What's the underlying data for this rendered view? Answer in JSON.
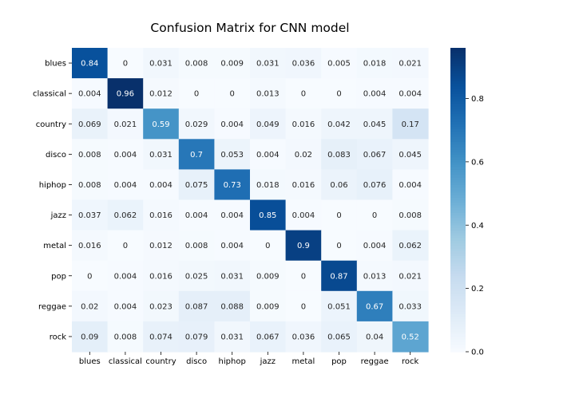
{
  "chart_data": {
    "type": "heatmap",
    "title": "Confusion Matrix for CNN model",
    "xlabel": "",
    "ylabel": "",
    "row_labels": [
      "blues",
      "classical",
      "country",
      "disco",
      "hiphop",
      "jazz",
      "metal",
      "pop",
      "reggae",
      "rock"
    ],
    "col_labels": [
      "blues",
      "classical",
      "country",
      "disco",
      "hiphop",
      "jazz",
      "metal",
      "pop",
      "reggae",
      "rock"
    ],
    "values": [
      [
        0.84,
        0,
        0.031,
        0.008,
        0.009,
        0.031,
        0.036,
        0.005,
        0.018,
        0.021
      ],
      [
        0.004,
        0.96,
        0.012,
        0,
        0,
        0.013,
        0,
        0,
        0.004,
        0.004
      ],
      [
        0.069,
        0.021,
        0.59,
        0.029,
        0.004,
        0.049,
        0.016,
        0.042,
        0.045,
        0.17
      ],
      [
        0.008,
        0.004,
        0.031,
        0.7,
        0.053,
        0.004,
        0.02,
        0.083,
        0.067,
        0.045
      ],
      [
        0.008,
        0.004,
        0.004,
        0.075,
        0.73,
        0.018,
        0.016,
        0.06,
        0.076,
        0.004
      ],
      [
        0.037,
        0.062,
        0.016,
        0.004,
        0.004,
        0.85,
        0.004,
        0,
        0,
        0.008
      ],
      [
        0.016,
        0,
        0.012,
        0.008,
        0.004,
        0,
        0.9,
        0,
        0.004,
        0.062
      ],
      [
        0,
        0.004,
        0.016,
        0.025,
        0.031,
        0.009,
        0,
        0.87,
        0.013,
        0.021
      ],
      [
        0.02,
        0.004,
        0.023,
        0.087,
        0.088,
        0.009,
        0,
        0.051,
        0.67,
        0.033
      ],
      [
        0.09,
        0.008,
        0.074,
        0.079,
        0.031,
        0.067,
        0.036,
        0.065,
        0.04,
        0.52
      ]
    ],
    "colorbar": {
      "min": 0,
      "max": 0.96,
      "ticks": [
        0.0,
        0.2,
        0.4,
        0.6,
        0.8
      ],
      "tick_labels": [
        "0.0",
        "0.2",
        "0.4",
        "0.6",
        "0.8"
      ],
      "colormap": "Blues"
    },
    "grid": false,
    "legend": "colorbar-right"
  }
}
